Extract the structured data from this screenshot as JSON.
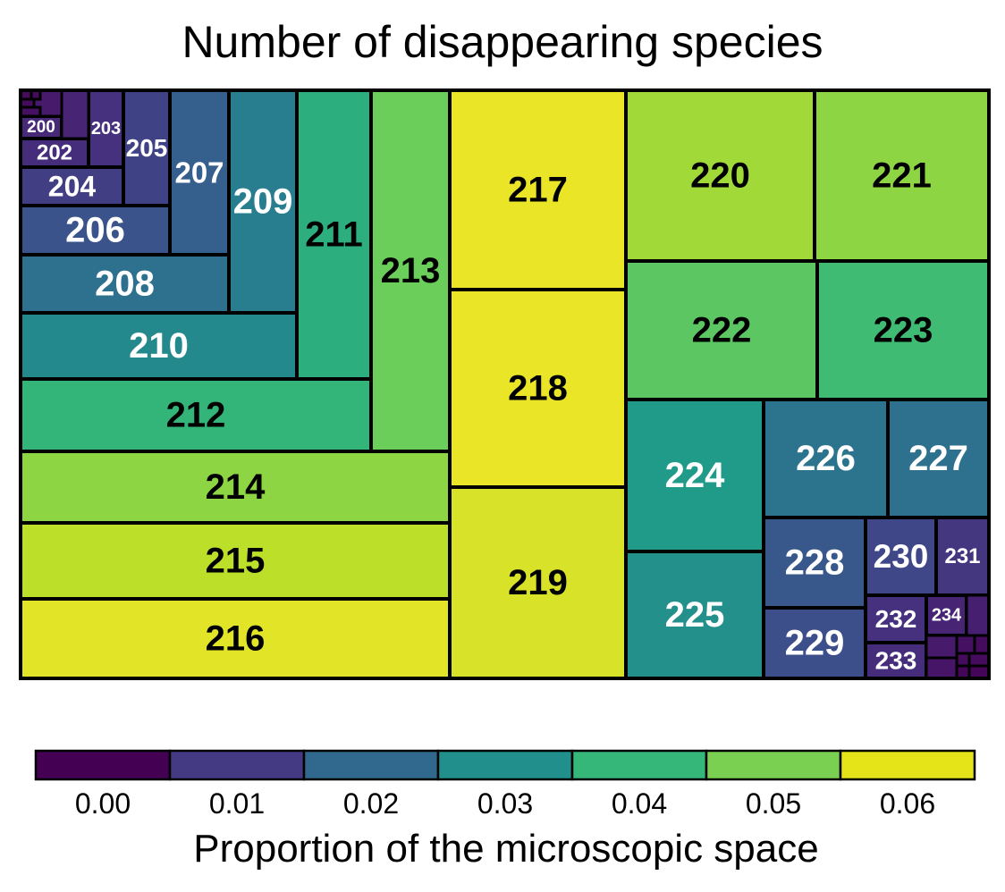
{
  "chart_data": {
    "type": "treemap",
    "title": "Number of disappearing species",
    "cells": [
      {
        "label": "217",
        "value": 0.063
      },
      {
        "label": "218",
        "value": 0.063
      },
      {
        "label": "219",
        "value": 0.061
      },
      {
        "label": "216",
        "value": 0.062
      },
      {
        "label": "215",
        "value": 0.058
      },
      {
        "label": "214",
        "value": 0.053
      },
      {
        "label": "221",
        "value": 0.053
      },
      {
        "label": "220",
        "value": 0.055
      },
      {
        "label": "213",
        "value": 0.049
      },
      {
        "label": "222",
        "value": 0.047
      },
      {
        "label": "223",
        "value": 0.043
      },
      {
        "label": "212",
        "value": 0.041
      },
      {
        "label": "211",
        "value": 0.039
      },
      {
        "label": "224",
        "value": 0.033
      },
      {
        "label": "225",
        "value": 0.03
      },
      {
        "label": "210",
        "value": 0.028
      },
      {
        "label": "226",
        "value": 0.022
      },
      {
        "label": "227",
        "value": 0.021
      },
      {
        "label": "209",
        "value": 0.025
      },
      {
        "label": "208",
        "value": 0.021
      },
      {
        "label": "207",
        "value": 0.016
      },
      {
        "label": "228",
        "value": 0.014
      },
      {
        "label": "229",
        "value": 0.012
      },
      {
        "label": "206",
        "value": 0.013
      },
      {
        "label": "230",
        "value": 0.01
      },
      {
        "label": "205",
        "value": 0.009
      },
      {
        "label": "204",
        "value": 0.008
      },
      {
        "label": "231",
        "value": 0.006
      },
      {
        "label": "232",
        "value": 0.005
      },
      {
        "label": "203",
        "value": 0.005
      },
      {
        "label": "233",
        "value": 0.004
      },
      {
        "label": "202",
        "value": 0.004
      },
      {
        "label": "200",
        "value": 0.003
      },
      {
        "label": "234",
        "value": 0.002
      }
    ],
    "colorbar": {
      "title": "Proportion of the microscopic space",
      "ticks": [
        "0.00",
        "0.01",
        "0.02",
        "0.03",
        "0.04",
        "0.05",
        "0.06"
      ],
      "colors": [
        "#440154",
        "#443a83",
        "#31688e",
        "#21908d",
        "#35b779",
        "#7ad151",
        "#e5e419"
      ]
    }
  }
}
